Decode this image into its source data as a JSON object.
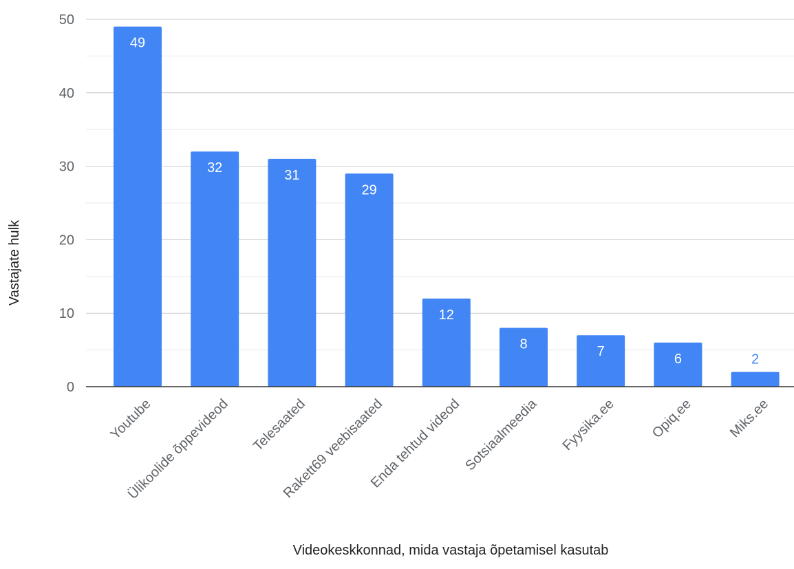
{
  "chart_data": {
    "type": "bar",
    "title": "",
    "xlabel": "Videokeskkonnad, mida vastaja õpetamisel kasutab",
    "ylabel": "Vastajate hulk",
    "categories": [
      "Youtube",
      "Ülikoolide õppevideod",
      "Telesaated",
      "Rakett69 veebisaated",
      "Enda tehtud videod",
      "Sotsiaalmeedia",
      "Fyysika.ee",
      "Opiq.ee",
      "Miks.ee"
    ],
    "values": [
      49,
      32,
      31,
      29,
      12,
      8,
      7,
      6,
      2
    ],
    "ylim": [
      0,
      50
    ],
    "yticks": [
      "0",
      "10",
      "20",
      "30",
      "40",
      "50"
    ],
    "grid": true,
    "legend": "none",
    "colors": {
      "bar": "#4285f4",
      "label_inside": "#ffffff",
      "label_outside": "#4285f4"
    }
  }
}
